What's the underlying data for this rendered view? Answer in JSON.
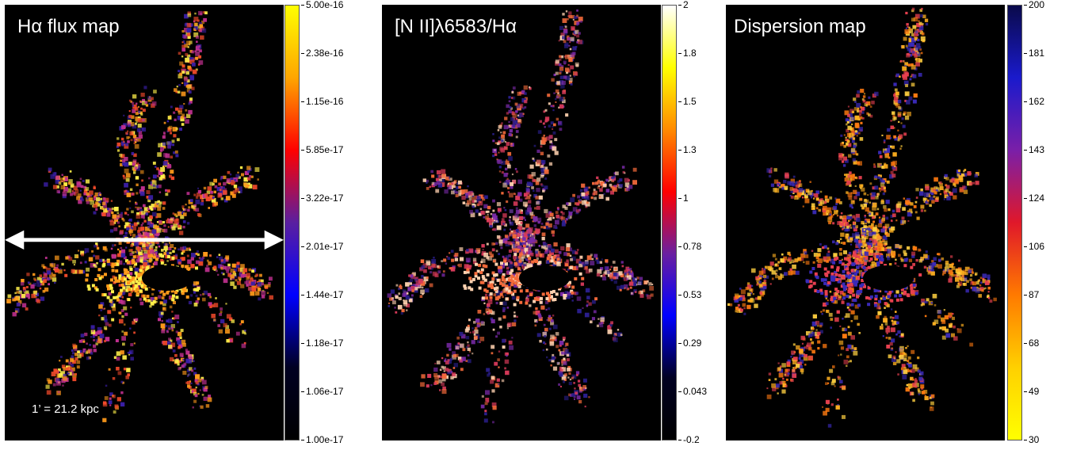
{
  "panels": [
    {
      "title": "Hα flux map",
      "palette": [
        "#3a1fa6",
        "#c13090",
        "#f24a2a",
        "#ff9a1a",
        "#fff04a"
      ],
      "colorbar": {
        "gradient": [
          "#ffff00",
          "#ffa500",
          "#ff0000",
          "#5a1fa0",
          "#0000ff",
          "#000022",
          "#000000"
        ],
        "ticks": [
          "5.00e-16",
          "2.38e-16",
          "1.15e-16",
          "5.85e-17",
          "3.22e-17",
          "2.01e-17",
          "1.44e-17",
          "1.18e-17",
          "1.06e-17",
          "1.00e-17"
        ]
      },
      "scale_bar": "1’ = 21.2 kpc"
    },
    {
      "title": "[N II]λ6583/Hα",
      "palette": [
        "#2b1f8f",
        "#7a2aa8",
        "#d93a5a",
        "#f46a3a",
        "#ffd2b0"
      ],
      "colorbar": {
        "gradient": [
          "#ffffff",
          "#ffff00",
          "#ff8a00",
          "#ff0000",
          "#6a1fa0",
          "#0000ff",
          "#000022",
          "#000000"
        ],
        "ticks": [
          "2",
          "1.8",
          "1.5",
          "1.3",
          "1",
          "0.78",
          "0.53",
          "0.29",
          "0.043",
          "-0.2"
        ]
      }
    },
    {
      "title": "Dispersion map",
      "palette": [
        "#ffb020",
        "#ff7a10",
        "#ffd040",
        "#e84050",
        "#3a2ab8"
      ],
      "colorbar": {
        "gradient": [
          "#0a0a4a",
          "#1a1acc",
          "#7a1fa8",
          "#e0182a",
          "#ff7a00",
          "#ffd000",
          "#ffff00"
        ],
        "ticks": [
          "200",
          "181",
          "162",
          "143",
          "124",
          "106",
          "87",
          "68",
          "49",
          "30"
        ]
      }
    }
  ]
}
